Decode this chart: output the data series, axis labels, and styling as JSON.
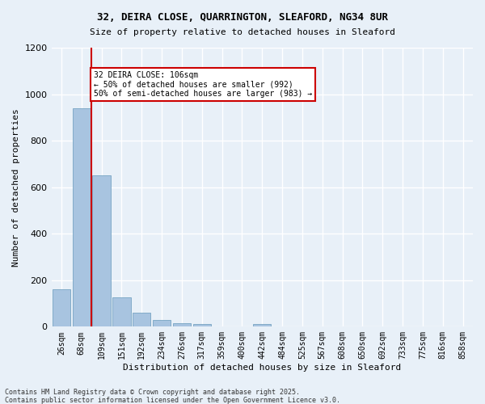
{
  "title1": "32, DEIRA CLOSE, QUARRINGTON, SLEAFORD, NG34 8UR",
  "title2": "Size of property relative to detached houses in Sleaford",
  "xlabel": "Distribution of detached houses by size in Sleaford",
  "ylabel": "Number of detached properties",
  "categories": [
    "26sqm",
    "68sqm",
    "109sqm",
    "151sqm",
    "192sqm",
    "234sqm",
    "276sqm",
    "317sqm",
    "359sqm",
    "400sqm",
    "442sqm",
    "484sqm",
    "525sqm",
    "567sqm",
    "608sqm",
    "650sqm",
    "692sqm",
    "733sqm",
    "775sqm",
    "816sqm",
    "858sqm"
  ],
  "values": [
    160,
    940,
    650,
    125,
    60,
    30,
    15,
    10,
    0,
    0,
    10,
    0,
    0,
    0,
    0,
    0,
    0,
    0,
    0,
    0,
    0
  ],
  "bar_color": "#a8c4e0",
  "bar_edge_color": "#6699bb",
  "background_color": "#e8f0f8",
  "grid_color": "#ffffff",
  "vline_x": 2,
  "vline_color": "#cc0000",
  "annotation_text": "32 DEIRA CLOSE: 106sqm\n← 50% of detached houses are smaller (992)\n50% of semi-detached houses are larger (983) →",
  "annotation_box_color": "#cc0000",
  "ylim": [
    0,
    1200
  ],
  "yticks": [
    0,
    200,
    400,
    600,
    800,
    1000,
    1200
  ],
  "footer1": "Contains HM Land Registry data © Crown copyright and database right 2025.",
  "footer2": "Contains public sector information licensed under the Open Government Licence v3.0."
}
